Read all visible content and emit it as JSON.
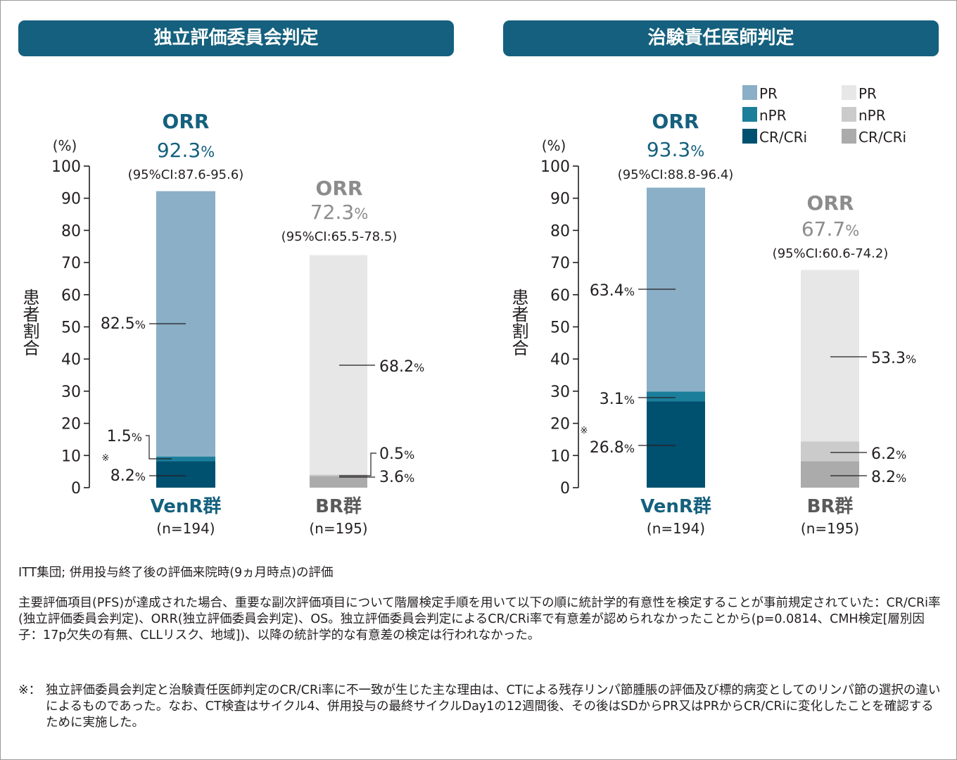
{
  "colors": {
    "header_bg": "#14607e",
    "venr_pr": "#8aafc6",
    "venr_npr": "#1b7e9b",
    "venr_crcri": "#00506f",
    "br_pr": "#e7e7e7",
    "br_npr": "#cbcbcb",
    "br_crcri": "#ababab",
    "venr_text": "#14607e",
    "br_text": "#8c8c8c"
  },
  "chart_data": [
    {
      "type": "bar",
      "stacked": true,
      "panel_title": "独立評価委員会判定",
      "unit_label": "(%)",
      "ylabel": "患者割合",
      "ylim": [
        0,
        100
      ],
      "yticks": [
        "0",
        "10",
        "20",
        "30",
        "40",
        "50",
        "60",
        "70",
        "80",
        "90",
        "100"
      ],
      "legend": false,
      "groups": [
        {
          "name": "VenR群",
          "n_label": "(n=194)",
          "color_key": "venr",
          "orr_label": "ORR",
          "orr_value": "92.3",
          "ci_label": "(95%CI:87.6-95.6)",
          "segments": [
            {
              "series": "CR/CRi",
              "value": 8.2,
              "label": "8.2",
              "note": "※"
            },
            {
              "series": "nPR",
              "value": 1.5,
              "label": "1.5"
            },
            {
              "series": "PR",
              "value": 82.5,
              "label": "82.5"
            }
          ]
        },
        {
          "name": "BR群",
          "n_label": "(n=195)",
          "color_key": "br",
          "orr_label": "ORR",
          "orr_value": "72.3",
          "ci_label": "(95%CI:65.5-78.5)",
          "segments": [
            {
              "series": "CR/CRi",
              "value": 3.6,
              "label": "3.6"
            },
            {
              "series": "nPR",
              "value": 0.5,
              "label": "0.5"
            },
            {
              "series": "PR",
              "value": 68.2,
              "label": "68.2"
            }
          ]
        }
      ]
    },
    {
      "type": "bar",
      "stacked": true,
      "panel_title": "治験責任医師判定",
      "unit_label": "(%)",
      "ylabel": "患者割合",
      "ylim": [
        0,
        100
      ],
      "yticks": [
        "0",
        "10",
        "20",
        "30",
        "40",
        "50",
        "60",
        "70",
        "80",
        "90",
        "100"
      ],
      "legend": true,
      "legend_items": [
        {
          "name": "PR",
          "color_key": "venr_pr"
        },
        {
          "name": "nPR",
          "color_key": "venr_npr"
        },
        {
          "name": "CR/CRi",
          "color_key": "venr_crcri"
        },
        {
          "name": "PR",
          "color_key": "br_pr"
        },
        {
          "name": "nPR",
          "color_key": "br_npr"
        },
        {
          "name": "CR/CRi",
          "color_key": "br_crcri"
        }
      ],
      "groups": [
        {
          "name": "VenR群",
          "n_label": "(n=194)",
          "color_key": "venr",
          "orr_label": "ORR",
          "orr_value": "93.3",
          "ci_label": "(95%CI:88.8-96.4)",
          "segments": [
            {
              "series": "CR/CRi",
              "value": 26.8,
              "label": "26.8",
              "note": "※"
            },
            {
              "series": "nPR",
              "value": 3.1,
              "label": "3.1"
            },
            {
              "series": "PR",
              "value": 63.4,
              "label": "63.4"
            }
          ]
        },
        {
          "name": "BR群",
          "n_label": "(n=195)",
          "color_key": "br",
          "orr_label": "ORR",
          "orr_value": "67.7",
          "ci_label": "(95%CI:60.6-74.2)",
          "segments": [
            {
              "series": "CR/CRi",
              "value": 8.2,
              "label": "8.2"
            },
            {
              "series": "nPR",
              "value": 6.2,
              "label": "6.2"
            },
            {
              "series": "PR",
              "value": 53.3,
              "label": "53.3"
            }
          ]
        }
      ]
    }
  ],
  "footnotes": {
    "population": "ITT集団; 併用投与終了後の評価来院時(9ヵ月時点)の評価",
    "primary": "主要評価項目(PFS)が達成された場合、重要な副次評価項目について階層検定手順を用いて以下の順に統計学的有意性を検定することが事前規定されていた：CR/CRi率(独立評価委員会判定)、ORR(独立評価委員会判定)、OS。独立評価委員会判定によるCR/CRi率で有意差が認められなかったことから(p=0.0814、CMH検定[層別因子：17p欠失の有無、CLLリスク、地域])、以降の統計学的な有意差の検定は行われなかった。",
    "note_mark": "※：",
    "note": "独立評価委員会判定と治験責任医師判定のCR/CRi率に不一致が生じた主な理由は、CTによる残存リンパ節腫脹の評価及び標的病変としてのリンパ節の選択の違いによるものであった。なお、CT検査はサイクル4、併用投与の最終サイクルDay1の12週間後、その後はSDからPR又はPRからCR/CRiに変化したことを確認するために実施した。"
  }
}
